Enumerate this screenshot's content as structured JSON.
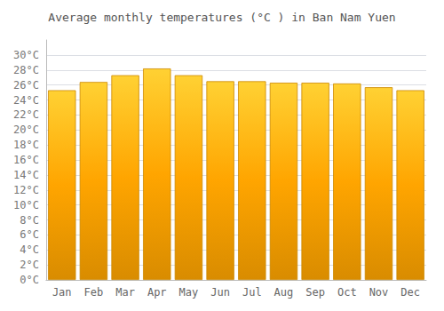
{
  "chart_data": {
    "type": "bar",
    "title": "Average monthly temperatures (°C ) in Ban Nam Yuen",
    "categories": [
      "Jan",
      "Feb",
      "Mar",
      "Apr",
      "May",
      "Jun",
      "Jul",
      "Aug",
      "Sep",
      "Oct",
      "Nov",
      "Dec"
    ],
    "values": [
      25.3,
      26.4,
      27.3,
      28.2,
      27.3,
      26.5,
      26.5,
      26.3,
      26.3,
      26.2,
      25.7,
      25.3
    ],
    "color": "#FFA500",
    "ylim": [
      0,
      32
    ],
    "yticks": [
      {
        "value": 0,
        "label": "0°C"
      },
      {
        "value": 2,
        "label": "2°C"
      },
      {
        "value": 4,
        "label": "4°C"
      },
      {
        "value": 6,
        "label": "6°C"
      },
      {
        "value": 8,
        "label": "8°C"
      },
      {
        "value": 10,
        "label": "10°C"
      },
      {
        "value": 12,
        "label": "12°C"
      },
      {
        "value": 14,
        "label": "14°C"
      },
      {
        "value": 16,
        "label": "16°C"
      },
      {
        "value": 18,
        "label": "18°C"
      },
      {
        "value": 20,
        "label": "20°C"
      },
      {
        "value": 22,
        "label": "22°C"
      },
      {
        "value": 24,
        "label": "24°C"
      },
      {
        "value": 26,
        "label": "26°C"
      },
      {
        "value": 28,
        "label": "28°C"
      },
      {
        "value": 30,
        "label": "30°C"
      }
    ],
    "grid": true
  }
}
